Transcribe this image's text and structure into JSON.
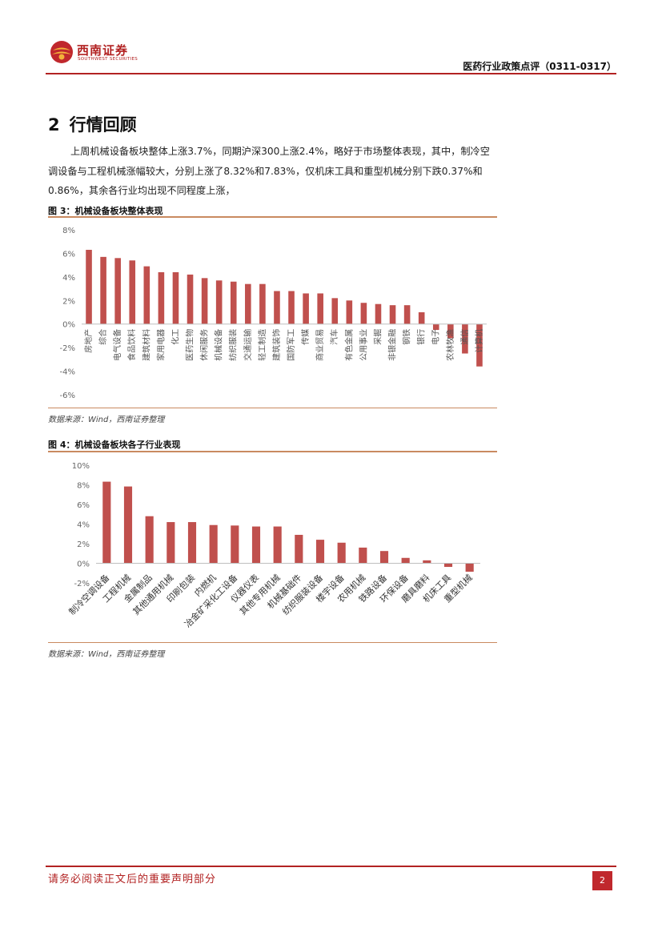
{
  "header": {
    "logo_cn": "西南证券",
    "logo_en": "SOUTHWEST SECURITIES",
    "report_title": "医药行业政策点评（0311-0317）"
  },
  "section": {
    "number": "2",
    "title": "行情回顾",
    "paragraph": "上周机械设备板块整体上涨3.7%，同期沪深300上涨2.4%，略好于市场整体表现，其中，制冷空调设备与工程机械涨幅较大，分别上涨了8.32%和7.83%，仅机床工具和重型机械分别下跌0.37%和0.86%，其余各行业均出现不同程度上涨，"
  },
  "figure3": {
    "title": "图 3：机械设备板块整体表现",
    "source": "数据来源：Wind，西南证券整理"
  },
  "figure4": {
    "title": "图 4：机械设备板块各子行业表现",
    "source": "数据来源：Wind，西南证券整理"
  },
  "chart_data": [
    {
      "type": "bar",
      "title": "图 3：机械设备板块整体表现",
      "categories": [
        "房地产",
        "综合",
        "电气设备",
        "食品饮料",
        "建筑材料",
        "家用电器",
        "化工",
        "医药生物",
        "休闲服务",
        "机械设备",
        "纺织服装",
        "交通运输",
        "轻工制造",
        "建筑装饰",
        "国防军工",
        "传媒",
        "商业贸易",
        "汽车",
        "有色金属",
        "公用事业",
        "采掘",
        "非银金融",
        "钢铁",
        "银行",
        "电子",
        "农林牧渔",
        "通信",
        "计算机"
      ],
      "values": [
        6.3,
        5.7,
        5.6,
        5.4,
        4.9,
        4.4,
        4.4,
        4.2,
        3.9,
        3.7,
        3.6,
        3.4,
        3.4,
        2.8,
        2.8,
        2.6,
        2.6,
        2.2,
        2.0,
        1.8,
        1.7,
        1.6,
        1.6,
        1.0,
        -0.5,
        -1.2,
        -2.5,
        -3.6
      ],
      "ylim": [
        -6,
        8
      ],
      "yticks": [
        "8%",
        "6%",
        "4%",
        "2%",
        "0%",
        "-2%",
        "-4%",
        "-6%"
      ],
      "bar_color": "#c0504d",
      "grid": false,
      "legend": "none"
    },
    {
      "type": "bar",
      "title": "图 4：机械设备板块各子行业表现",
      "categories": [
        "制冷空调设备",
        "工程机械",
        "金属制品",
        "其他通用机械",
        "印刷包装",
        "内燃机",
        "冶金矿采化工设备",
        "仪器仪表",
        "其他专用机械",
        "机械基础件",
        "纺织服装设备",
        "楼宇设备",
        "农用机械",
        "铁路设备",
        "环保设备",
        "磨具磨料",
        "机床工具",
        "重型机械"
      ],
      "values": [
        8.32,
        7.83,
        4.8,
        4.2,
        4.2,
        3.9,
        3.85,
        3.75,
        3.75,
        2.9,
        2.4,
        2.1,
        1.6,
        1.25,
        0.55,
        0.3,
        -0.37,
        -0.86
      ],
      "ylim": [
        -2,
        10
      ],
      "yticks": [
        "10%",
        "8%",
        "6%",
        "4%",
        "2%",
        "0%",
        "-2%"
      ],
      "bar_color": "#c0504d",
      "grid": false,
      "legend": "none"
    }
  ],
  "footer": {
    "disclaimer": "请务必阅读正文后的重要声明部分",
    "page": "2"
  }
}
